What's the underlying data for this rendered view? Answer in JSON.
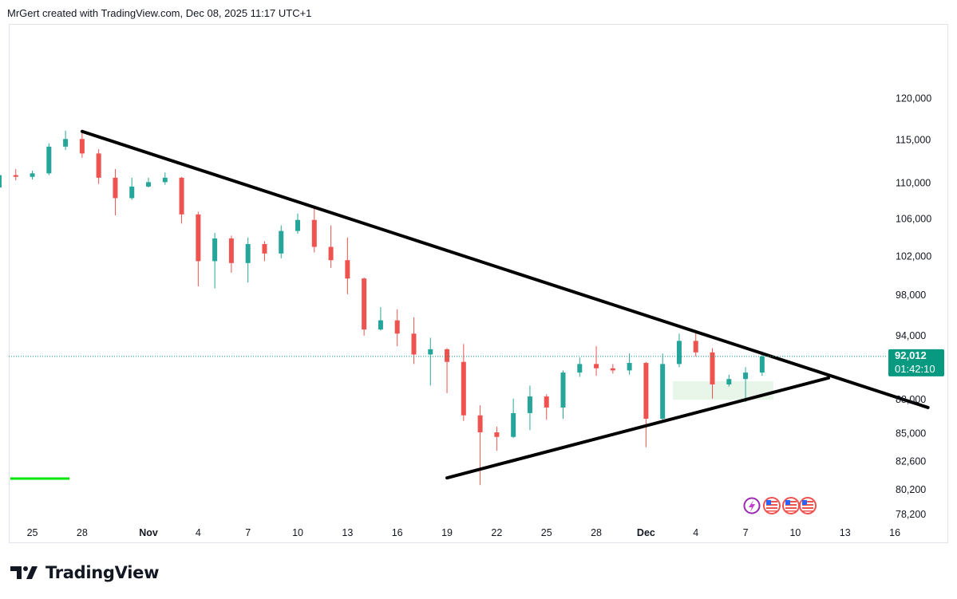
{
  "header": {
    "text": "MrGert created with TradingView.com, Dec 08, 2025 11:17 UTC+1"
  },
  "brand": {
    "name": "TradingView",
    "logo_icon": "tradingview-logo-icon"
  },
  "price_tag": {
    "price": "92,012",
    "countdown": "01:42:10",
    "color": "#089981"
  },
  "event_icons": [
    "lightning-event-icon",
    "us-flag-event-icon",
    "us-flag-event-icon",
    "us-flag-event-icon"
  ],
  "colors": {
    "up": "#26a69a",
    "down": "#ef5350",
    "trendline": "#000000",
    "support_zone": "#e8f5e9",
    "indicator_line": "#00e600"
  },
  "chart_data": {
    "type": "candlestick",
    "instrument_note": "daily candles",
    "x_ticks": [
      "25",
      "28",
      "Nov",
      "4",
      "7",
      "10",
      "13",
      "16",
      "19",
      "22",
      "25",
      "28",
      "Dec",
      "4",
      "7",
      "10",
      "13",
      "16"
    ],
    "y_ticks": [
      "120,000",
      "115,000",
      "110,000",
      "106,000",
      "102,000",
      "98,000",
      "94,000",
      "88,000",
      "85,000",
      "82,600",
      "80,200",
      "78,200"
    ],
    "y_scale": "log",
    "ylim": [
      77000,
      122000
    ],
    "last_price": 92012,
    "candles": [
      [
        "Oct 23",
        109500,
        111200,
        108900,
        110900
      ],
      [
        "Oct 24",
        110900,
        111600,
        110300,
        110700
      ],
      [
        "Oct 25",
        110700,
        111400,
        110400,
        111100
      ],
      [
        "Oct 26",
        111100,
        114600,
        110900,
        114200
      ],
      [
        "Oct 27",
        114200,
        116100,
        113800,
        115100
      ],
      [
        "Oct 28",
        115100,
        116200,
        112900,
        113400
      ],
      [
        "Oct 29",
        113400,
        113900,
        109900,
        110600
      ],
      [
        "Oct 30",
        110600,
        111600,
        106400,
        108300
      ],
      [
        "Oct 31",
        108300,
        110600,
        108100,
        109600
      ],
      [
        "Nov 1",
        109600,
        110600,
        109500,
        110100
      ],
      [
        "Nov 2",
        110100,
        111200,
        109800,
        110600
      ],
      [
        "Nov 3",
        110600,
        110700,
        105500,
        106500
      ],
      [
        "Nov 4",
        106500,
        106800,
        98900,
        101500
      ],
      [
        "Nov 5",
        101500,
        104500,
        98700,
        103900
      ],
      [
        "Nov 6",
        103900,
        104200,
        100300,
        101300
      ],
      [
        "Nov 7",
        101300,
        104000,
        99300,
        103300
      ],
      [
        "Nov 8",
        103300,
        103600,
        101500,
        102300
      ],
      [
        "Nov 9",
        102300,
        105300,
        101800,
        104700
      ],
      [
        "Nov 10",
        104700,
        106600,
        104400,
        105900
      ],
      [
        "Nov 11",
        105900,
        107400,
        102400,
        103000
      ],
      [
        "Nov 12",
        103000,
        105300,
        100800,
        101600
      ],
      [
        "Nov 13",
        101600,
        104000,
        98100,
        99700
      ],
      [
        "Nov 14",
        99700,
        99800,
        94000,
        94600
      ],
      [
        "Nov 15",
        94600,
        96800,
        94500,
        95500
      ],
      [
        "Nov 16",
        95500,
        96600,
        93000,
        94200
      ],
      [
        "Nov 17",
        94200,
        95800,
        91300,
        92200
      ],
      [
        "Nov 18",
        92200,
        93800,
        89300,
        92700
      ],
      [
        "Nov 19",
        92700,
        92800,
        88600,
        91500
      ],
      [
        "Nov 20",
        91500,
        93200,
        86100,
        86600
      ],
      [
        "Nov 21",
        86600,
        87500,
        80600,
        85100
      ],
      [
        "Nov 22",
        85100,
        85600,
        83500,
        84700
      ],
      [
        "Nov 23",
        84700,
        88100,
        84600,
        86800
      ],
      [
        "Nov 24",
        86800,
        89300,
        85300,
        88300
      ],
      [
        "Nov 25",
        88300,
        88500,
        86200,
        87300
      ],
      [
        "Nov 26",
        87300,
        90700,
        86300,
        90500
      ],
      [
        "Nov 27",
        90500,
        91900,
        90100,
        91300
      ],
      [
        "Nov 28",
        91300,
        93000,
        90200,
        90900
      ],
      [
        "Nov 29",
        90900,
        91300,
        90400,
        90700
      ],
      [
        "Nov 30",
        90700,
        92300,
        90300,
        91400
      ],
      [
        "Dec 1",
        91400,
        91500,
        83800,
        86300
      ],
      [
        "Dec 2",
        86300,
        92300,
        86000,
        91300
      ],
      [
        "Dec 3",
        91300,
        94200,
        91000,
        93500
      ],
      [
        "Dec 4",
        93500,
        94300,
        92000,
        92400
      ],
      [
        "Dec 5",
        92400,
        92800,
        88100,
        89400
      ],
      [
        "Dec 6",
        89400,
        90300,
        89200,
        89900
      ],
      [
        "Dec 7",
        89900,
        91000,
        87800,
        90500
      ],
      [
        "Dec 8",
        90500,
        92500,
        90200,
        92012
      ]
    ],
    "annotations": {
      "descending_trendline": [
        [
          "Oct 28",
          116000
        ],
        [
          "Dec 18",
          87300
        ]
      ],
      "ascending_trendline": [
        [
          "Nov 19",
          81200
        ],
        [
          "Dec 12",
          90000
        ]
      ],
      "support_zone": {
        "from": "Dec 3",
        "to": "Dec 8",
        "low": 88000,
        "high": 89700
      }
    }
  }
}
